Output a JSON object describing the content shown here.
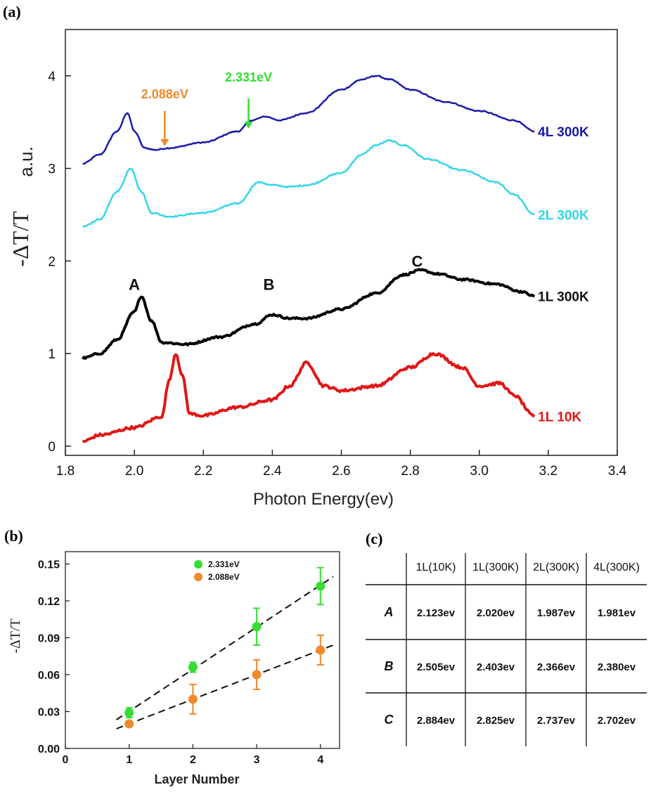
{
  "chart_data": [
    {
      "type": "line",
      "panel": "(a)",
      "xlabel": "Photon Energy(ev)",
      "ylabel": "-ΔT/T",
      "ylabel_unit": "a.u.",
      "xlim": [
        1.8,
        3.4
      ],
      "ylim": [
        -0.1,
        4.5
      ],
      "xticks": [
        "1.8",
        "2.0",
        "2.2",
        "2.4",
        "2.6",
        "2.8",
        "3.0",
        "3.2",
        "3.4"
      ],
      "yticks": [
        "0",
        "1",
        "2",
        "3",
        "4"
      ],
      "series": [
        {
          "name": "4L 300K",
          "color": "#1a1aa8",
          "x": [
            1.85,
            1.9,
            1.95,
            1.98,
            2.0,
            2.03,
            2.06,
            2.1,
            2.2,
            2.3,
            2.34,
            2.38,
            2.42,
            2.5,
            2.6,
            2.66,
            2.7,
            2.74,
            2.8,
            2.9,
            3.0,
            3.1,
            3.16
          ],
          "y": [
            3.05,
            3.15,
            3.4,
            3.6,
            3.4,
            3.22,
            3.2,
            3.22,
            3.28,
            3.4,
            3.52,
            3.56,
            3.52,
            3.6,
            3.85,
            3.96,
            4.0,
            3.96,
            3.85,
            3.72,
            3.62,
            3.52,
            3.4
          ]
        },
        {
          "name": "2L 300K",
          "color": "#33d6e6",
          "x": [
            1.85,
            1.9,
            1.95,
            1.99,
            2.02,
            2.05,
            2.1,
            2.2,
            2.3,
            2.36,
            2.4,
            2.45,
            2.5,
            2.6,
            2.66,
            2.7,
            2.74,
            2.78,
            2.85,
            2.95,
            3.05,
            3.1,
            3.16
          ],
          "y": [
            2.37,
            2.45,
            2.75,
            3.0,
            2.75,
            2.52,
            2.48,
            2.52,
            2.62,
            2.85,
            2.82,
            2.8,
            2.82,
            2.95,
            3.15,
            3.25,
            3.3,
            3.25,
            3.1,
            2.98,
            2.85,
            2.72,
            2.5
          ]
        },
        {
          "name": "1L 300K",
          "color": "#000000",
          "x": [
            1.85,
            1.9,
            1.95,
            2.0,
            2.02,
            2.05,
            2.08,
            2.15,
            2.25,
            2.35,
            2.4,
            2.45,
            2.5,
            2.6,
            2.7,
            2.78,
            2.83,
            2.88,
            2.95,
            3.05,
            3.12,
            3.16
          ],
          "y": [
            0.95,
            1.0,
            1.15,
            1.45,
            1.62,
            1.35,
            1.12,
            1.1,
            1.18,
            1.32,
            1.42,
            1.38,
            1.38,
            1.48,
            1.65,
            1.85,
            1.9,
            1.86,
            1.8,
            1.75,
            1.67,
            1.62
          ]
        },
        {
          "name": "1L 10K",
          "color": "#e01616",
          "x": [
            1.85,
            1.9,
            2.0,
            2.08,
            2.1,
            2.12,
            2.14,
            2.16,
            2.2,
            2.3,
            2.4,
            2.45,
            2.5,
            2.55,
            2.6,
            2.7,
            2.8,
            2.87,
            2.95,
            3.0,
            3.06,
            3.1,
            3.16
          ],
          "y": [
            0.05,
            0.12,
            0.2,
            0.32,
            0.7,
            1.0,
            0.75,
            0.35,
            0.33,
            0.42,
            0.5,
            0.65,
            0.9,
            0.65,
            0.6,
            0.65,
            0.85,
            1.0,
            0.85,
            0.65,
            0.68,
            0.55,
            0.32
          ]
        }
      ],
      "annotations": [
        {
          "text": "A",
          "x": 2.0,
          "y": 1.75
        },
        {
          "text": "B",
          "x": 2.39,
          "y": 1.75
        },
        {
          "text": "C",
          "x": 2.82,
          "y": 2.0
        },
        {
          "text": "2.088eV",
          "x": 2.088,
          "color": "#f0892a"
        },
        {
          "text": "2.331eV",
          "x": 2.331,
          "color": "#33dd33"
        }
      ]
    },
    {
      "type": "scatter",
      "panel": "(b)",
      "xlabel": "Layer Number",
      "ylabel": "-ΔT/T",
      "xlim": [
        0,
        4.3
      ],
      "ylim": [
        0,
        0.16
      ],
      "xticks": [
        "0",
        "1",
        "2",
        "3",
        "4"
      ],
      "yticks": [
        "0.00",
        "0.03",
        "0.06",
        "0.09",
        "0.12",
        "0.15"
      ],
      "series": [
        {
          "name": "2.331eV",
          "color": "#33dd33",
          "x": [
            1,
            2,
            3,
            4
          ],
          "y": [
            0.029,
            0.066,
            0.099,
            0.132
          ],
          "err": [
            0.004,
            0.004,
            0.015,
            0.015
          ]
        },
        {
          "name": "2.088eV",
          "color": "#f0892a",
          "x": [
            1,
            2,
            3,
            4
          ],
          "y": [
            0.02,
            0.04,
            0.06,
            0.08
          ],
          "err": [
            0.002,
            0.012,
            0.012,
            0.012
          ]
        }
      ]
    },
    {
      "type": "table",
      "panel": "(c)",
      "columns": [
        "1L(10K)",
        "1L(300K)",
        "2L(300K)",
        "4L(300K)"
      ],
      "rows": [
        {
          "label": "A",
          "values": [
            "2.123ev",
            "2.020ev",
            "1.987ev",
            "1.981ev"
          ]
        },
        {
          "label": "B",
          "values": [
            "2.505ev",
            "2.403ev",
            "2.366ev",
            "2.380ev"
          ]
        },
        {
          "label": "C",
          "values": [
            "2.884ev",
            "2.825ev",
            "2.737ev",
            "2.702ev"
          ]
        }
      ]
    }
  ]
}
